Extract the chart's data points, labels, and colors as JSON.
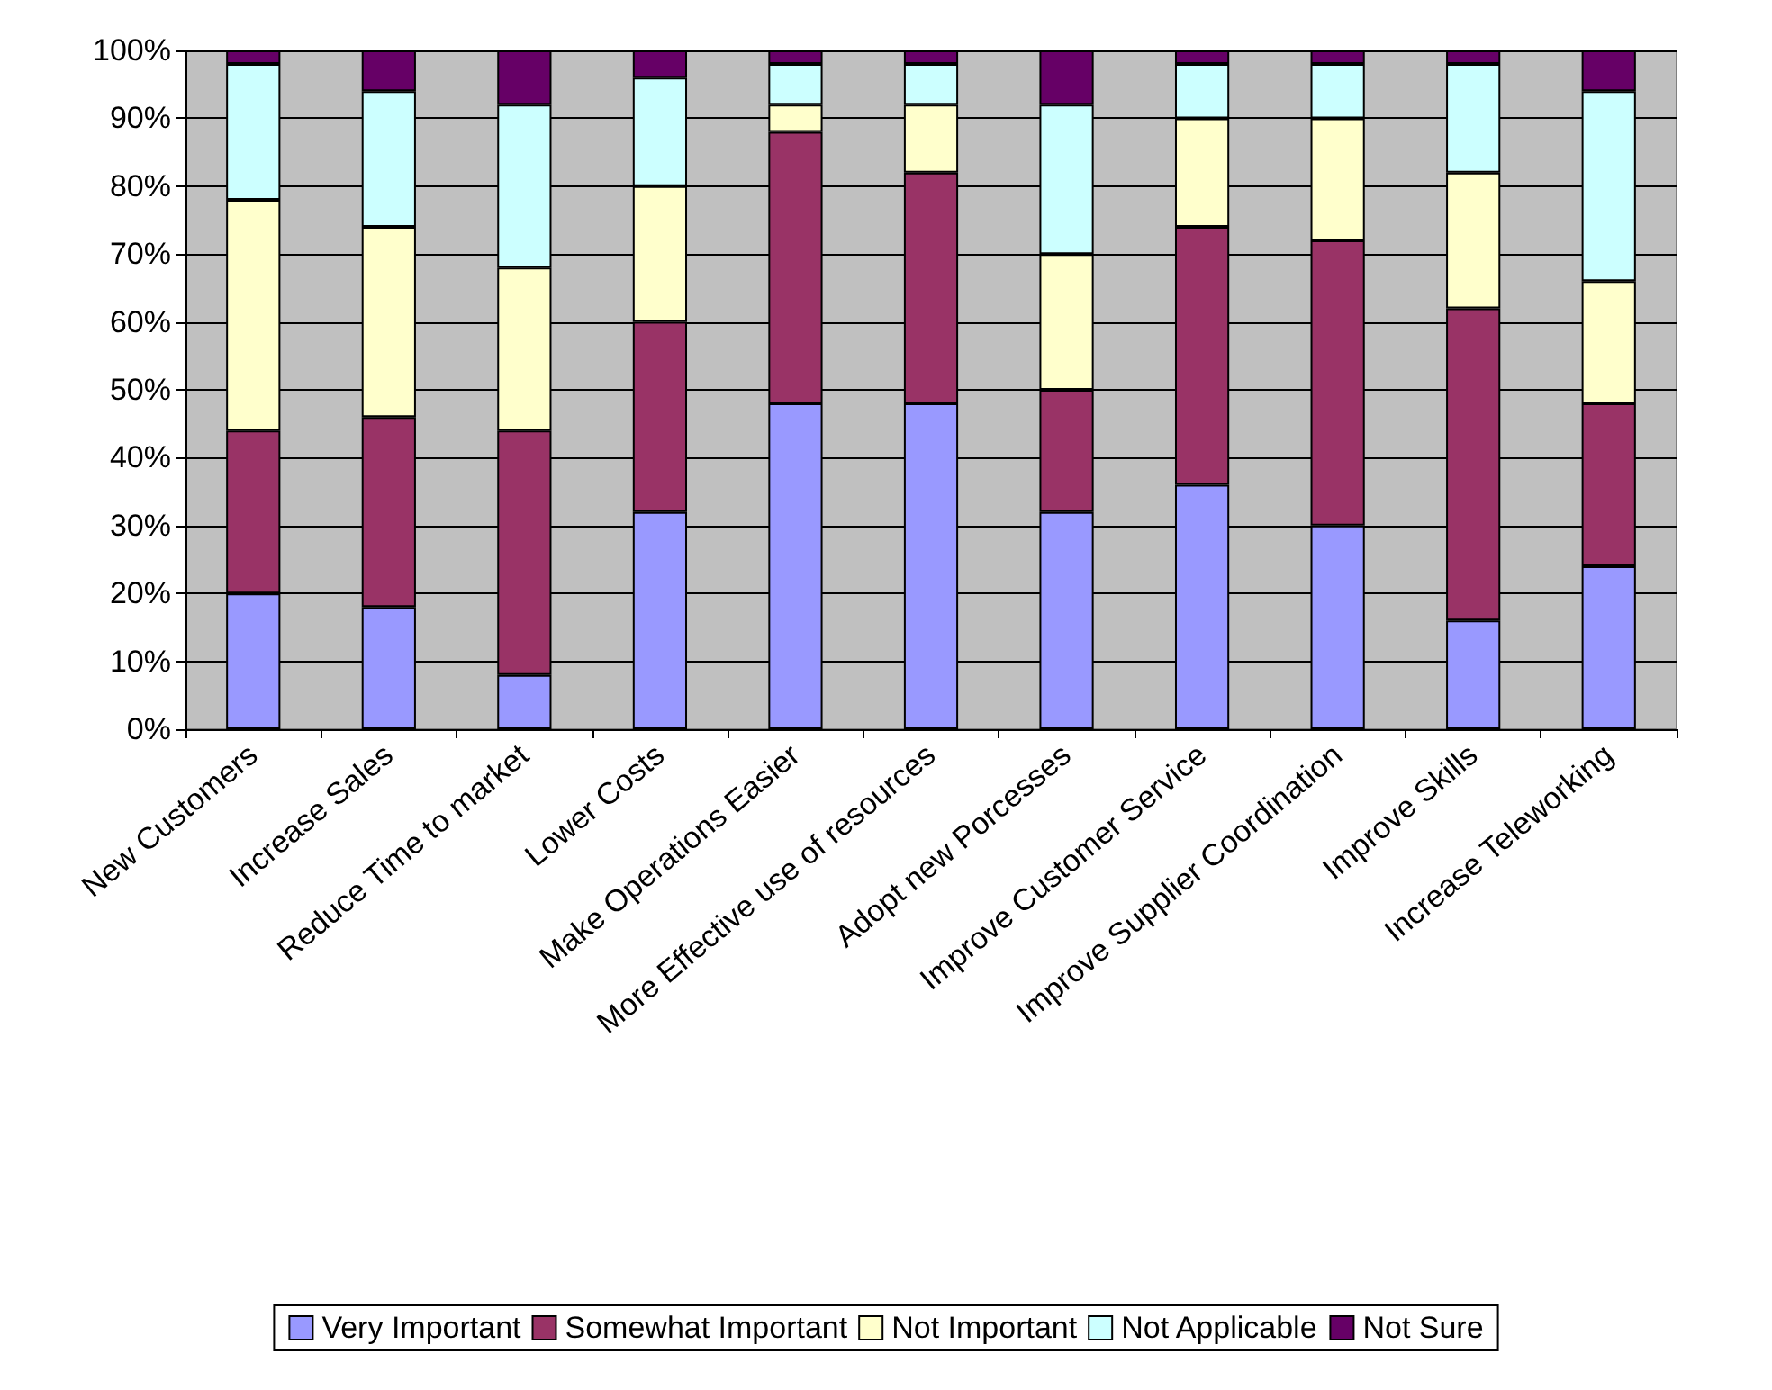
{
  "chart_data": {
    "type": "bar",
    "stacked": true,
    "categories": [
      "New Customers",
      "Increase Sales",
      "Reduce Time to market",
      "Lower Costs",
      "Make Operations Easier",
      "More Effective use of resources",
      "Adopt new Porcesses",
      "Improve Customer Service",
      "Improve Supplier Coordination",
      "Improve Skills",
      "Increase Teleworking"
    ],
    "series": [
      {
        "name": "Very Important",
        "color": "#9999ff",
        "values": [
          20,
          18,
          8,
          32,
          48,
          48,
          32,
          36,
          30,
          16,
          24
        ]
      },
      {
        "name": "Somewhat Important",
        "color": "#993366",
        "values": [
          24,
          28,
          36,
          28,
          40,
          34,
          18,
          38,
          42,
          46,
          24
        ]
      },
      {
        "name": "Not Important",
        "color": "#ffffcc",
        "values": [
          34,
          28,
          24,
          20,
          4,
          10,
          20,
          16,
          18,
          20,
          18
        ]
      },
      {
        "name": "Not Applicable",
        "color": "#ccffff",
        "values": [
          20,
          20,
          24,
          16,
          6,
          6,
          22,
          8,
          8,
          16,
          28
        ]
      },
      {
        "name": "Not Sure",
        "color": "#660066",
        "values": [
          2,
          6,
          8,
          4,
          2,
          2,
          8,
          2,
          2,
          2,
          6
        ]
      }
    ],
    "ylim": [
      0,
      100
    ],
    "yticks": [
      {
        "value": 0,
        "label": "0%"
      },
      {
        "value": 10,
        "label": "10%"
      },
      {
        "value": 20,
        "label": "20%"
      },
      {
        "value": 30,
        "label": "30%"
      },
      {
        "value": 40,
        "label": "40%"
      },
      {
        "value": 50,
        "label": "50%"
      },
      {
        "value": 60,
        "label": "60%"
      },
      {
        "value": 70,
        "label": "70%"
      },
      {
        "value": 80,
        "label": "80%"
      },
      {
        "value": 90,
        "label": "90%"
      },
      {
        "value": 100,
        "label": "100%"
      }
    ],
    "grid": "y",
    "legend": "bottom"
  }
}
